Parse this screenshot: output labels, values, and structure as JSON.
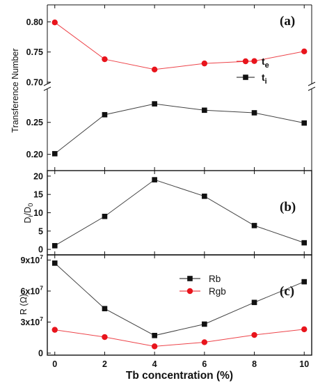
{
  "chart_data": [
    {
      "type": "line",
      "panel_label": "(a)",
      "ylabel": "Transference Number",
      "x": [
        0,
        2,
        4,
        6,
        8,
        10
      ],
      "xlim": [
        -0.3,
        10.3
      ],
      "axis_break": true,
      "upper_ylim": [
        0.7,
        0.82
      ],
      "upper_yticks": [
        "0.70",
        "0.75",
        "0.80"
      ],
      "lower_ylim": [
        0.18,
        0.302
      ],
      "lower_yticks": [
        "0.20",
        "0.25"
      ],
      "legend": "right",
      "series": [
        {
          "name": "t",
          "sub": "e",
          "color": "#e8141c",
          "marker": "circle",
          "values": [
            0.799,
            0.738,
            0.721,
            0.731,
            0.735,
            0.751
          ]
        },
        {
          "name": "t",
          "sub": "i",
          "color": "#111111",
          "marker": "square",
          "values": [
            0.201,
            0.262,
            0.279,
            0.269,
            0.265,
            0.249
          ]
        }
      ]
    },
    {
      "type": "line",
      "panel_label": "(b)",
      "ylabel": "D",
      "ylabel_sub": "i",
      "ylabel_mid": "/D",
      "ylabel_sub2": "0",
      "x": [
        0,
        2,
        4,
        6,
        8,
        10
      ],
      "xlim": [
        -0.3,
        10.3
      ],
      "ylim": [
        -1.5,
        21.5
      ],
      "yticks": [
        "0",
        "5",
        "10",
        "15",
        "20"
      ],
      "series": [
        {
          "name": "Di/D0",
          "color": "#111111",
          "marker": "square",
          "values": [
            1,
            9,
            19,
            14.5,
            6.5,
            1.8
          ]
        }
      ]
    },
    {
      "type": "line",
      "panel_label": "(c)",
      "ylabel": "R (Ω)",
      "x": [
        0,
        2,
        4,
        6,
        8,
        10
      ],
      "xlim": [
        -0.3,
        10.3
      ],
      "ylim": [
        -2000000,
        95000000
      ],
      "yticks": [
        {
          "value": 0,
          "base": "0",
          "exp": ""
        },
        {
          "value": 30000000,
          "base": "3x10",
          "exp": "7"
        },
        {
          "value": 60000000,
          "base": "6x10",
          "exp": "7"
        },
        {
          "value": 90000000,
          "base": "9x10",
          "exp": "7"
        }
      ],
      "xlabel": "Tb concentration (%)",
      "xticks": [
        "0",
        "2",
        "4",
        "6",
        "8",
        "10"
      ],
      "legend": "top-center",
      "series": [
        {
          "name": "Rb",
          "color": "#111111",
          "marker": "square",
          "values": [
            87000000,
            43000000,
            17000000,
            28000000,
            49000000,
            69000000
          ]
        },
        {
          "name": "Rgb",
          "color": "#e8141c",
          "marker": "circle",
          "values": [
            22500000,
            15500000,
            6500000,
            10500000,
            17500000,
            23000000
          ]
        }
      ]
    }
  ]
}
